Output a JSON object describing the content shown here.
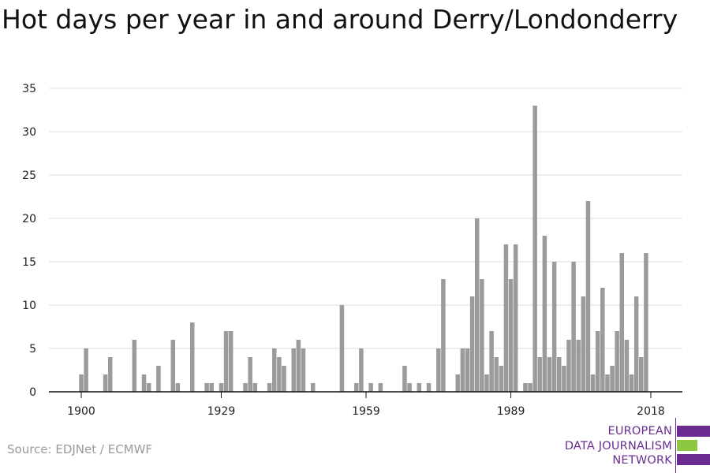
{
  "title": "Hot days per year in and around Derry/Londonderry",
  "source": "Source: EDJNet / ECMWF",
  "logo": {
    "lines": [
      "EUROPEAN",
      "DATA JOURNALISM",
      "NETWORK"
    ],
    "colors": {
      "purple": "#6a2c91",
      "green": "#8dc63f"
    }
  },
  "chart_data": {
    "type": "bar",
    "title": "Hot days per year in and around Derry/Londonderry",
    "xlabel": "",
    "ylabel": "",
    "x_range": [
      1900,
      2018
    ],
    "ylim": [
      0,
      35
    ],
    "yticks": [
      0,
      5,
      10,
      15,
      20,
      25,
      30,
      35
    ],
    "xticks": [
      1900,
      1929,
      1959,
      1989,
      2018
    ],
    "grid": true,
    "bar_color": "#9b9b9b",
    "series": [
      {
        "years": [
          1900,
          1901,
          1902,
          1903,
          1904,
          1905,
          1906,
          1907,
          1908,
          1909,
          1910,
          1911,
          1912,
          1913,
          1914,
          1915,
          1916,
          1917,
          1918,
          1919,
          1920,
          1921,
          1922,
          1923,
          1924,
          1925,
          1926,
          1927,
          1928,
          1929,
          1930,
          1931,
          1932,
          1933,
          1934,
          1935,
          1936,
          1937,
          1938,
          1939,
          1940,
          1941,
          1942,
          1943,
          1944,
          1945,
          1946,
          1947,
          1948,
          1949,
          1950,
          1951,
          1952,
          1953,
          1954,
          1955,
          1956,
          1957,
          1958,
          1959,
          1960,
          1961,
          1962,
          1963,
          1964,
          1965,
          1966,
          1967,
          1968,
          1969,
          1970,
          1971,
          1972,
          1973,
          1974,
          1975,
          1976,
          1977,
          1978,
          1979,
          1980,
          1981,
          1982,
          1983,
          1984,
          1985,
          1986,
          1987,
          1988,
          1989,
          1990,
          1991,
          1992,
          1993,
          1994,
          1995,
          1996,
          1997,
          1998,
          1999,
          2000,
          2001,
          2002,
          2003,
          2004,
          2005,
          2006,
          2007,
          2008,
          2009,
          2010,
          2011,
          2012,
          2013,
          2014,
          2015,
          2016,
          2017,
          2018
        ],
        "values": [
          2,
          5,
          0,
          0,
          0,
          2,
          4,
          0,
          0,
          0,
          0,
          6,
          0,
          2,
          1,
          0,
          3,
          0,
          0,
          6,
          1,
          0,
          0,
          8,
          0,
          0,
          1,
          1,
          0,
          1,
          7,
          7,
          0,
          0,
          1,
          4,
          1,
          0,
          0,
          1,
          5,
          4,
          3,
          0,
          5,
          6,
          5,
          0,
          1,
          0,
          0,
          0,
          0,
          0,
          10,
          0,
          0,
          1,
          5,
          0,
          1,
          0,
          1,
          0,
          0,
          0,
          0,
          3,
          1,
          0,
          1,
          0,
          1,
          0,
          5,
          13,
          0,
          0,
          2,
          5,
          5,
          11,
          20,
          13,
          2,
          7,
          4,
          3,
          17,
          13,
          17,
          0,
          1,
          1,
          33,
          4,
          18,
          4,
          15,
          4,
          3,
          6,
          15,
          6,
          11,
          22,
          2,
          7,
          12,
          2,
          3,
          7,
          16,
          6,
          2,
          11,
          4,
          16,
          0
        ]
      }
    ]
  }
}
